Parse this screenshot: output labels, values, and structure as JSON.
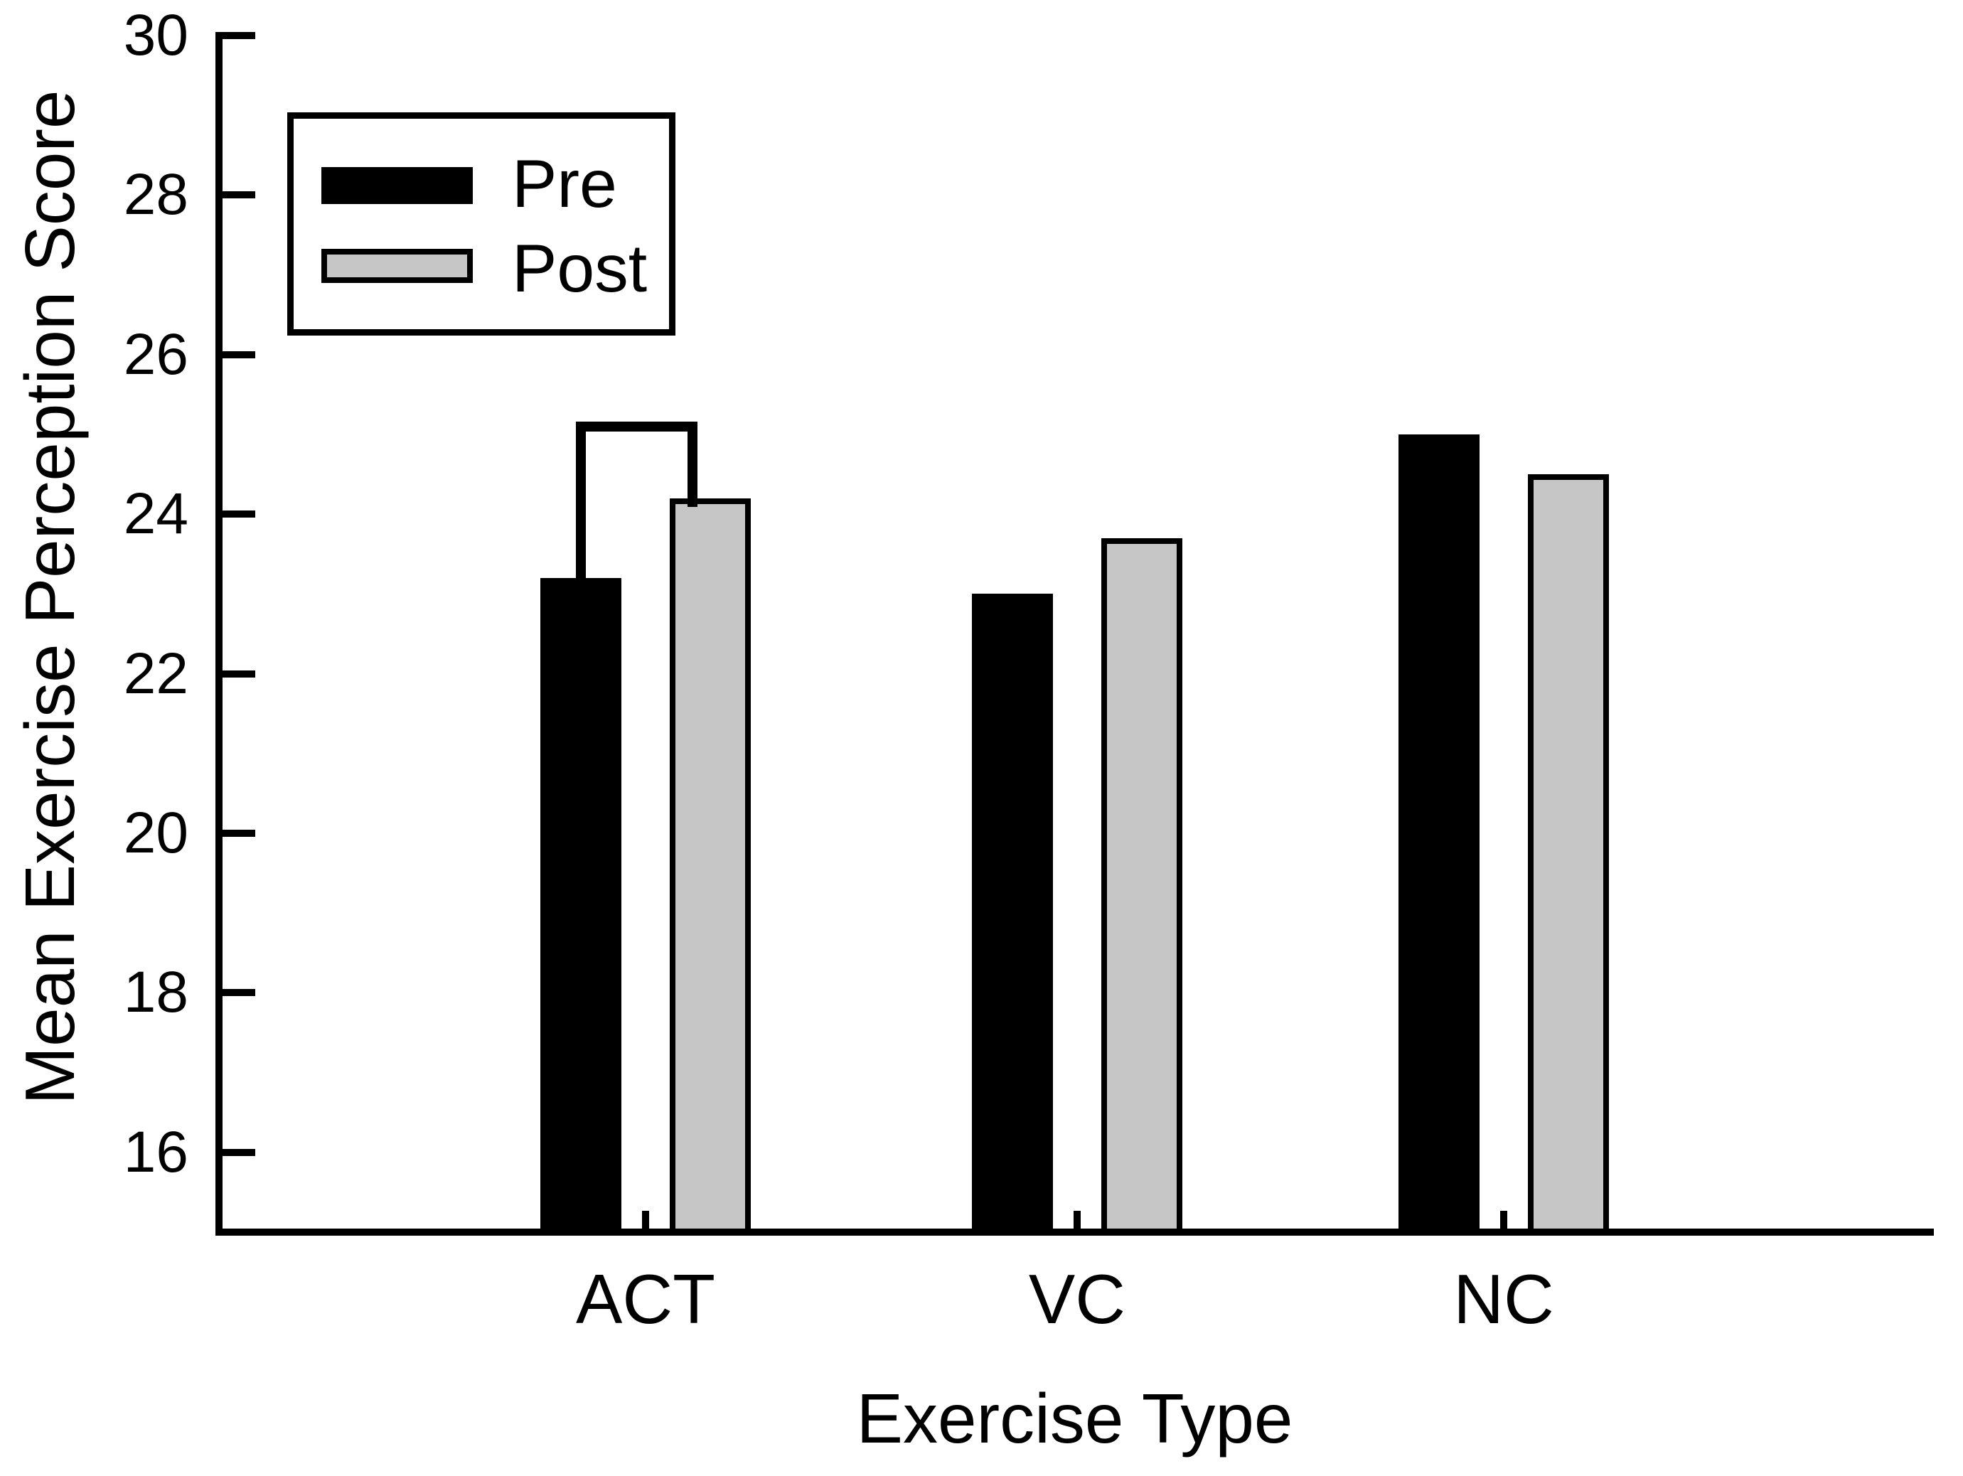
{
  "chart_data": {
    "type": "bar",
    "title": "",
    "xlabel": "Exercise Type",
    "ylabel": "Mean Exercise Perception Score",
    "categories": [
      "ACT",
      "VC",
      "NC"
    ],
    "series": [
      {
        "name": "Pre",
        "color": "#000000",
        "values": [
          23.2,
          23.0,
          25.0
        ]
      },
      {
        "name": "Post",
        "color": "#c6c6c6",
        "values": [
          24.2,
          23.7,
          24.5
        ]
      }
    ],
    "ylim": [
      15,
      30
    ],
    "yticks": [
      16,
      18,
      20,
      22,
      24,
      26,
      28,
      30
    ],
    "grid": false,
    "legend_position": "top-left-inside",
    "annotation": {
      "type": "significance_bracket",
      "category": "ACT",
      "connects": [
        "Pre",
        "Post"
      ],
      "top_value": 25.1
    },
    "colors": {
      "pre_fill": "#000000",
      "post_fill": "#c6c6c6",
      "axis": "#000000",
      "background": "#ffffff"
    }
  }
}
